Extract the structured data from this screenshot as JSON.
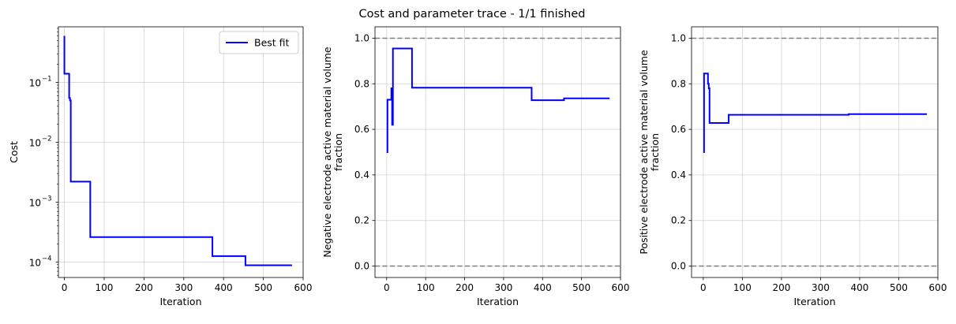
{
  "figure_title": "Cost and parameter trace - 1/1 finished",
  "chart_data": [
    {
      "type": "line",
      "xlabel": "Iteration",
      "ylabel": "Cost",
      "yscale": "log",
      "xlim": [
        -15,
        600
      ],
      "ylim": [
        5.5e-05,
        0.85
      ],
      "xticks": [
        0,
        100,
        200,
        300,
        400,
        500,
        600
      ],
      "xtick_labels": [
        "0",
        "100",
        "200",
        "300",
        "400",
        "500",
        "600"
      ],
      "yticks": [
        0.0001,
        0.001,
        0.01,
        0.1
      ],
      "ytick_labels": [
        "10",
        "10",
        "10",
        "10"
      ],
      "ytick_exponents": [
        "−4",
        "−3",
        "−2",
        "−1"
      ],
      "grid": true,
      "legend": {
        "placement": "top-right",
        "entries": [
          "Best fit"
        ]
      },
      "series": [
        {
          "name": "Best fit",
          "color": "#0000ff",
          "x": [
            0,
            0,
            2,
            2,
            12,
            12,
            14,
            14,
            16,
            16,
            65,
            65,
            372,
            372,
            455,
            455,
            572
          ],
          "y": [
            0.6,
            0.14,
            0.14,
            0.14,
            0.14,
            0.055,
            0.055,
            0.05,
            0.05,
            0.0022,
            0.0022,
            0.00026,
            0.00026,
            0.000125,
            0.000125,
            8.8e-05,
            8.8e-05
          ]
        }
      ]
    },
    {
      "type": "line",
      "xlabel": "Iteration",
      "ylabel_lines": [
        "Negative electrode active material volume",
        "fraction"
      ],
      "xlim": [
        -30,
        600
      ],
      "ylim": [
        -0.05,
        1.05
      ],
      "xticks": [
        0,
        100,
        200,
        300,
        400,
        500,
        600
      ],
      "xtick_labels": [
        "0",
        "100",
        "200",
        "300",
        "400",
        "500",
        "600"
      ],
      "yticks": [
        0.0,
        0.2,
        0.4,
        0.6,
        0.8,
        1.0
      ],
      "ytick_labels": [
        "0.0",
        "0.2",
        "0.4",
        "0.6",
        "0.8",
        "1.0"
      ],
      "grid": true,
      "hlines": [
        0,
        1
      ],
      "hline_color": "#7f7f7f",
      "series": [
        {
          "color": "#0000ff",
          "x": [
            0,
            2,
            2,
            12,
            12,
            14,
            14,
            16,
            16,
            18,
            18,
            65,
            65,
            372,
            372,
            455,
            455,
            572
          ],
          "y": [
            0.5,
            0.5,
            0.73,
            0.73,
            0.78,
            0.78,
            0.62,
            0.62,
            0.955,
            0.955,
            0.955,
            0.955,
            0.783,
            0.783,
            0.728,
            0.728,
            0.736,
            0.736
          ]
        }
      ]
    },
    {
      "type": "line",
      "xlabel": "Iteration",
      "ylabel_lines": [
        "Positive electrode active material volume",
        "fraction"
      ],
      "xlim": [
        -30,
        600
      ],
      "ylim": [
        -0.05,
        1.05
      ],
      "xticks": [
        0,
        100,
        200,
        300,
        400,
        500,
        600
      ],
      "xtick_labels": [
        "0",
        "100",
        "200",
        "300",
        "400",
        "500",
        "600"
      ],
      "yticks": [
        0.0,
        0.2,
        0.4,
        0.6,
        0.8,
        1.0
      ],
      "ytick_labels": [
        "0.0",
        "0.2",
        "0.4",
        "0.6",
        "0.8",
        "1.0"
      ],
      "grid": true,
      "hlines": [
        0,
        1
      ],
      "hline_color": "#7f7f7f",
      "series": [
        {
          "color": "#0000ff",
          "x": [
            0,
            2,
            2,
            12,
            12,
            14,
            14,
            16,
            16,
            65,
            65,
            372,
            372,
            572
          ],
          "y": [
            0.5,
            0.5,
            0.845,
            0.845,
            0.8,
            0.8,
            0.78,
            0.78,
            0.628,
            0.628,
            0.664,
            0.664,
            0.667,
            0.667
          ]
        }
      ]
    }
  ]
}
